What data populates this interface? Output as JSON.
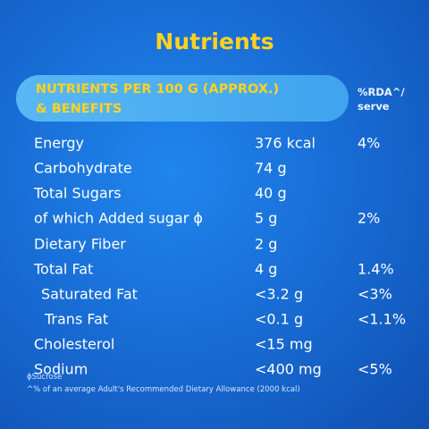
{
  "title": "Nutrients",
  "table": {
    "header": {
      "nutrients": [
        "NUTRIENTS PER 100 G (APPROX.)",
        "& BENEFITS"
      ],
      "rda": [
        "%RDA^/",
        "serve"
      ]
    },
    "rows": [
      {
        "name": "Energy",
        "amount": "376 kcal",
        "rda": "4%"
      },
      {
        "name": "Carbohydrate",
        "amount": "74 g"
      },
      {
        "name": "Total Sugars",
        "amount": "40 g"
      },
      {
        "name": "of which Added sugar ϕ",
        "amount": "5 g",
        "rda": "2%"
      },
      {
        "name": "Dietary Fiber",
        "amount": "2 g"
      },
      {
        "name": "Total Fat",
        "amount": "4 g",
        "rda": "1.4%"
      },
      {
        "name": "Saturated Fat",
        "amount": "<3.2 g",
        "rda": "<3%"
      },
      {
        "name": "Trans Fat",
        "amount": "<0.1 g",
        "rda": "<1.1%"
      },
      {
        "name": "Cholesterol",
        "amount": "<15 mg"
      },
      {
        "name": "Sodium",
        "amount": "<400 mg",
        "rda": "<5%"
      }
    ]
  },
  "footnotes": [
    "ϕSucrose",
    "^% of an average Adult's Recommended Dietary Allowance (2000 kcal)"
  ]
}
